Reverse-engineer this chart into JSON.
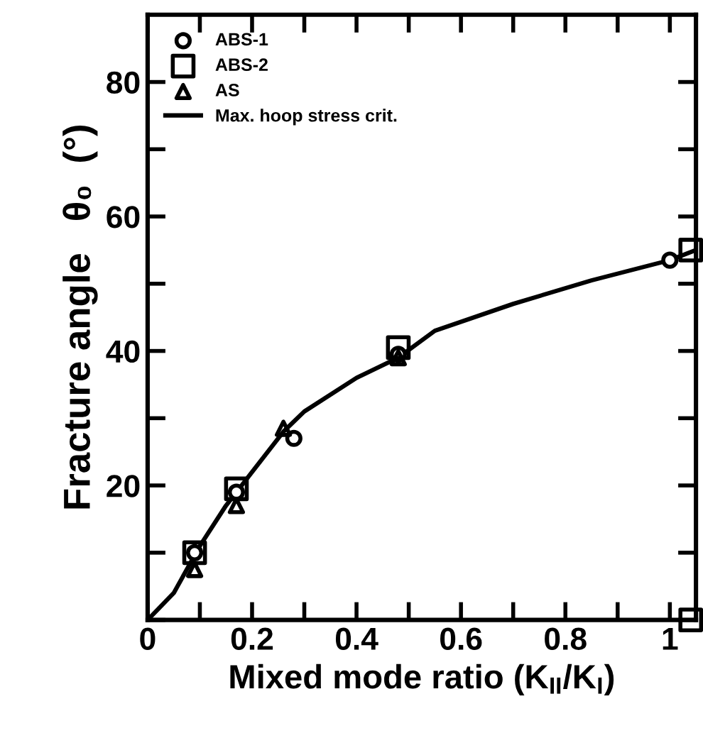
{
  "chart_data": {
    "type": "scatter",
    "xlabel": "Mixed mode ratio (K$_{II}$/K$_{I}$)",
    "ylabel": "Fracture angle   θ₀  (°)",
    "xlim": [
      0,
      1.05
    ],
    "ylim": [
      0,
      90
    ],
    "xticks": [
      0,
      {
        "value": 0.1,
        "label": null
      },
      0.2,
      {
        "value": 0.3,
        "label": null
      },
      0.4,
      {
        "value": 0.5,
        "label": null
      },
      0.6,
      {
        "value": 0.7,
        "label": null
      },
      0.8,
      {
        "value": 0.9,
        "label": null
      },
      1
    ],
    "yticks": [
      {
        "value": 0,
        "label": null
      },
      {
        "value": 10,
        "label": null
      },
      20,
      {
        "value": 30,
        "label": null
      },
      40,
      {
        "value": 50,
        "label": null
      },
      60,
      {
        "value": 70,
        "label": null
      },
      80
    ],
    "legend": "top left",
    "grid": false,
    "series": [
      {
        "name": "ABS-1",
        "color": "#000000",
        "marker": "circle",
        "x": [
          0.09,
          0.17,
          0.28,
          0.48,
          1.0
        ],
        "values": [
          10,
          19,
          27,
          39.5,
          53.5
        ]
      },
      {
        "name": "ABS-2",
        "color": "#000000",
        "marker": "square",
        "x": [
          0.09,
          0.17,
          0.48,
          1.04,
          1.04
        ],
        "values": [
          10,
          19.5,
          40.5,
          55,
          0
        ]
      },
      {
        "name": "AS",
        "color": "#000000",
        "marker": "triangle",
        "x": [
          0.09,
          0.17,
          0.26,
          0.48
        ],
        "values": [
          7.5,
          17,
          28.5,
          39
        ]
      },
      {
        "name": "Max. hoop stress crit.",
        "type": "line",
        "color": "#000000",
        "marker": "none",
        "line_style": "solid",
        "x": [
          0,
          0.05,
          0.1,
          0.15,
          0.2,
          0.26,
          0.3,
          0.4,
          0.48,
          0.55,
          0.7,
          0.85,
          1.0,
          1.05
        ],
        "values": [
          0,
          4,
          11,
          17,
          22,
          28,
          31,
          36,
          39,
          43,
          47,
          50.5,
          53.5,
          55
        ]
      }
    ]
  }
}
